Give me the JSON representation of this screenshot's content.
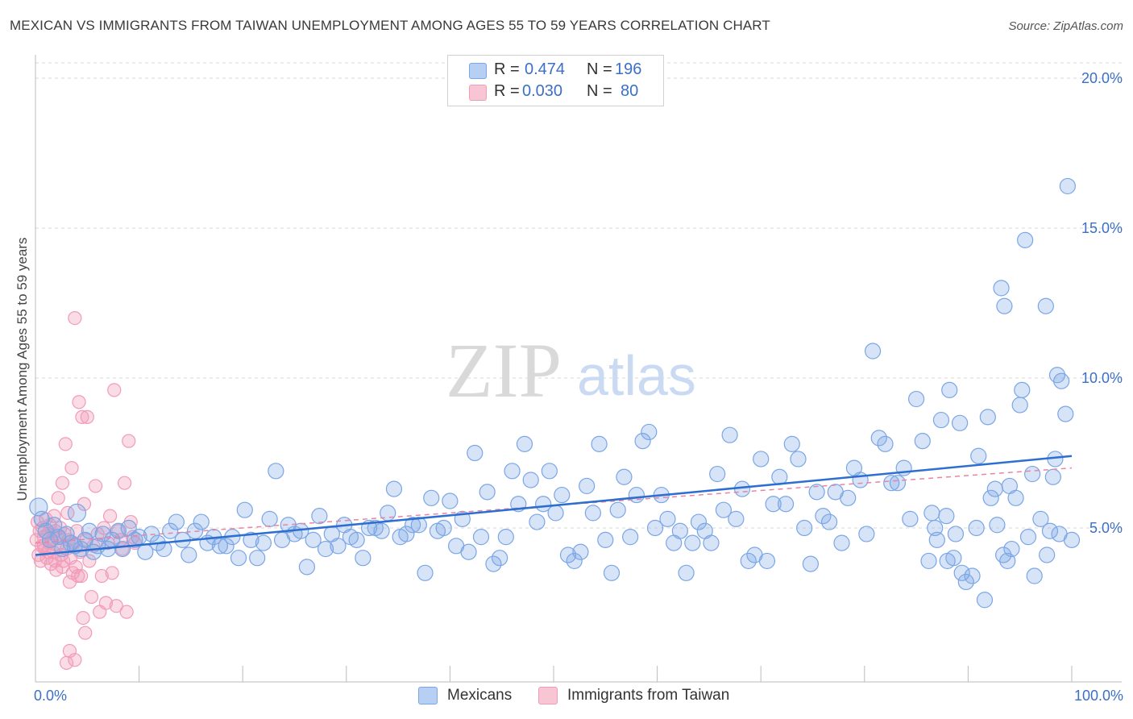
{
  "title": "MEXICAN VS IMMIGRANTS FROM TAIWAN UNEMPLOYMENT AMONG AGES 55 TO 59 YEARS CORRELATION CHART",
  "source": "Source: ZipAtlas.com",
  "watermark": {
    "zip": "ZIP",
    "atlas": "atlas"
  },
  "legend": {
    "rows": [
      {
        "r_label": "R =",
        "r_value": "0.474",
        "n_label": "N =",
        "n_value": "196"
      },
      {
        "r_label": "R =",
        "r_value": "0.030",
        "n_label": "N =",
        "n_value": "80"
      }
    ]
  },
  "bottom_legend": [
    "Mexicans",
    "Immigrants from Taiwan"
  ],
  "x_tick_labels": [
    "0.0%",
    "100.0%"
  ],
  "colors": {
    "blue": "#7aa6e6",
    "blue_line": "#2d6fd0",
    "pink": "#f29bb8",
    "pink_line": "#e884a4",
    "accent_text": "#3b6fc7"
  },
  "chart_data": {
    "type": "scatter",
    "title": "MEXICAN VS IMMIGRANTS FROM TAIWAN UNEMPLOYMENT AMONG AGES 55 TO 59 YEARS CORRELATION CHART",
    "xlabel": "",
    "ylabel": "Unemployment Among Ages 55 to 59 years",
    "xlim": [
      0,
      100
    ],
    "ylim": [
      0,
      20
    ],
    "y_ticks": [
      5,
      10,
      15,
      20
    ],
    "y_tick_labels": [
      "5.0%",
      "10.0%",
      "15.0%",
      "20.0%"
    ],
    "grid": "horizontal dashed",
    "legend_position": "top-center",
    "series": [
      {
        "name": "Mexicans",
        "color": "#7aa6e6",
        "trend": {
          "x": [
            0,
            100
          ],
          "y": [
            4.1,
            7.4
          ]
        },
        "points": [
          [
            0.3,
            5.7
          ],
          [
            0.6,
            5.3
          ],
          [
            1,
            4.9
          ],
          [
            1.4,
            4.6
          ],
          [
            1.8,
            5.1
          ],
          [
            2.2,
            4.7
          ],
          [
            2.6,
            4.3
          ],
          [
            3,
            4.8
          ],
          [
            3.4,
            4.5
          ],
          [
            3.8,
            4.4
          ],
          [
            4,
            5.5
          ],
          [
            4.4,
            4.3
          ],
          [
            4.8,
            4.6
          ],
          [
            5.2,
            4.9
          ],
          [
            5.6,
            4.2
          ],
          [
            6,
            4.4
          ],
          [
            6.5,
            4.8
          ],
          [
            7,
            4.3
          ],
          [
            7.4,
            4.6
          ],
          [
            8,
            4.9
          ],
          [
            8.4,
            4.3
          ],
          [
            9,
            5.0
          ],
          [
            9.6,
            4.6
          ],
          [
            10,
            4.7
          ],
          [
            10.6,
            4.2
          ],
          [
            11.2,
            4.8
          ],
          [
            11.8,
            4.5
          ],
          [
            12.4,
            4.3
          ],
          [
            13,
            4.9
          ],
          [
            13.6,
            5.2
          ],
          [
            14.2,
            4.6
          ],
          [
            14.8,
            4.1
          ],
          [
            15.4,
            4.9
          ],
          [
            16,
            5.2
          ],
          [
            16.6,
            4.5
          ],
          [
            17.2,
            4.7
          ],
          [
            17.8,
            4.4
          ],
          [
            18.4,
            4.4
          ],
          [
            19,
            4.7
          ],
          [
            19.6,
            4.0
          ],
          [
            20.2,
            5.6
          ],
          [
            20.8,
            4.6
          ],
          [
            21.4,
            4.0
          ],
          [
            22,
            4.5
          ],
          [
            22.6,
            5.3
          ],
          [
            23.2,
            6.9
          ],
          [
            23.8,
            4.6
          ],
          [
            24.4,
            5.1
          ],
          [
            25,
            4.8
          ],
          [
            25.6,
            4.9
          ],
          [
            26.2,
            3.7
          ],
          [
            26.8,
            4.6
          ],
          [
            27.4,
            5.4
          ],
          [
            28,
            4.3
          ],
          [
            28.6,
            4.8
          ],
          [
            29.2,
            4.4
          ],
          [
            29.8,
            5.1
          ],
          [
            30.4,
            4.7
          ],
          [
            31,
            4.6
          ],
          [
            31.6,
            4.0
          ],
          [
            32.2,
            5.0
          ],
          [
            32.8,
            5.0
          ],
          [
            33.4,
            4.9
          ],
          [
            34,
            5.5
          ],
          [
            34.6,
            6.3
          ],
          [
            35.2,
            4.7
          ],
          [
            35.8,
            4.8
          ],
          [
            36.4,
            5.1
          ],
          [
            37,
            5.1
          ],
          [
            37.6,
            3.5
          ],
          [
            38.2,
            6.0
          ],
          [
            38.8,
            4.9
          ],
          [
            39.4,
            5.0
          ],
          [
            40,
            5.9
          ],
          [
            40.6,
            4.4
          ],
          [
            41.2,
            5.3
          ],
          [
            41.8,
            4.2
          ],
          [
            42.4,
            7.5
          ],
          [
            43,
            4.7
          ],
          [
            43.6,
            6.2
          ],
          [
            44.2,
            3.8
          ],
          [
            44.8,
            4.0
          ],
          [
            45.4,
            4.7
          ],
          [
            46,
            6.9
          ],
          [
            46.6,
            5.8
          ],
          [
            47.2,
            7.8
          ],
          [
            47.8,
            6.6
          ],
          [
            48.4,
            5.2
          ],
          [
            49,
            5.8
          ],
          [
            49.6,
            6.9
          ],
          [
            50.2,
            5.5
          ],
          [
            50.8,
            6.1
          ],
          [
            51.4,
            4.1
          ],
          [
            52,
            3.9
          ],
          [
            52.6,
            4.2
          ],
          [
            53.2,
            6.4
          ],
          [
            53.8,
            5.5
          ],
          [
            54.4,
            7.8
          ],
          [
            55,
            4.6
          ],
          [
            55.6,
            3.5
          ],
          [
            56.2,
            5.6
          ],
          [
            56.8,
            6.7
          ],
          [
            57.4,
            4.7
          ],
          [
            58,
            6.1
          ],
          [
            58.6,
            7.9
          ],
          [
            59.2,
            8.2
          ],
          [
            59.8,
            5.0
          ],
          [
            60.4,
            6.1
          ],
          [
            61,
            5.3
          ],
          [
            61.6,
            4.5
          ],
          [
            62.2,
            4.9
          ],
          [
            62.8,
            3.5
          ],
          [
            63.4,
            4.5
          ],
          [
            64,
            5.2
          ],
          [
            64.6,
            4.9
          ],
          [
            65.2,
            4.5
          ],
          [
            65.8,
            6.8
          ],
          [
            66.4,
            5.6
          ],
          [
            67,
            8.1
          ],
          [
            67.6,
            5.3
          ],
          [
            68.2,
            6.3
          ],
          [
            68.8,
            3.9
          ],
          [
            69.4,
            4.1
          ],
          [
            70,
            7.3
          ],
          [
            70.6,
            3.9
          ],
          [
            71.2,
            5.8
          ],
          [
            71.8,
            6.7
          ],
          [
            72.4,
            5.8
          ],
          [
            73,
            7.8
          ],
          [
            73.6,
            7.3
          ],
          [
            74.2,
            5.0
          ],
          [
            74.8,
            3.8
          ],
          [
            75.4,
            6.2
          ],
          [
            76,
            5.4
          ],
          [
            76.6,
            5.2
          ],
          [
            77.2,
            6.2
          ],
          [
            77.8,
            4.5
          ],
          [
            78.4,
            6.0
          ],
          [
            79,
            7.0
          ],
          [
            79.6,
            6.6
          ],
          [
            80.2,
            4.8
          ],
          [
            80.8,
            10.9
          ],
          [
            81.4,
            8.0
          ],
          [
            82,
            7.8
          ],
          [
            82.6,
            6.5
          ],
          [
            83.2,
            6.5
          ],
          [
            83.8,
            7.0
          ],
          [
            84.4,
            5.3
          ],
          [
            85,
            9.3
          ],
          [
            85.6,
            7.9
          ],
          [
            86.2,
            3.9
          ],
          [
            86.8,
            5.0
          ],
          [
            87.4,
            8.6
          ],
          [
            88,
            3.9
          ],
          [
            88.6,
            4.0
          ],
          [
            89.2,
            8.5
          ],
          [
            89.8,
            3.2
          ],
          [
            90.4,
            3.4
          ],
          [
            91,
            7.4
          ],
          [
            91.6,
            2.6
          ],
          [
            92.2,
            6.0
          ],
          [
            92.8,
            5.1
          ],
          [
            93.4,
            4.1
          ],
          [
            94,
            6.4
          ],
          [
            94.6,
            6.0
          ],
          [
            95.2,
            9.6
          ],
          [
            95.8,
            4.7
          ],
          [
            96.4,
            3.4
          ],
          [
            97,
            5.3
          ],
          [
            97.6,
            4.1
          ],
          [
            98.2,
            6.7
          ],
          [
            98.8,
            4.8
          ],
          [
            99.4,
            8.8
          ],
          [
            100,
            4.6
          ],
          [
            88.2,
            9.6
          ],
          [
            93.2,
            13.0
          ],
          [
            93.5,
            12.4
          ],
          [
            95.5,
            14.6
          ],
          [
            97.5,
            12.4
          ],
          [
            98.6,
            10.1
          ],
          [
            99.0,
            9.9
          ],
          [
            99.6,
            16.4
          ],
          [
            98.4,
            7.3
          ],
          [
            97.9,
            4.9
          ],
          [
            96.2,
            6.8
          ],
          [
            95.0,
            9.1
          ],
          [
            94.2,
            4.3
          ],
          [
            93.8,
            3.9
          ],
          [
            92.6,
            6.3
          ],
          [
            91.9,
            8.7
          ],
          [
            90.8,
            5.0
          ],
          [
            89.4,
            3.5
          ],
          [
            88.8,
            4.8
          ],
          [
            87.9,
            5.4
          ],
          [
            87.0,
            4.6
          ],
          [
            86.5,
            5.5
          ]
        ]
      },
      {
        "name": "Immigrants from Taiwan",
        "color": "#f29bb8",
        "trend": {
          "x": [
            0,
            100
          ],
          "y": [
            4.5,
            7.0
          ]
        },
        "points": [
          [
            0.1,
            4.6
          ],
          [
            0.2,
            5.2
          ],
          [
            0.3,
            4.1
          ],
          [
            0.4,
            4.9
          ],
          [
            0.5,
            3.9
          ],
          [
            0.6,
            4.4
          ],
          [
            0.7,
            5.0
          ],
          [
            0.8,
            4.7
          ],
          [
            0.9,
            4.3
          ],
          [
            1.0,
            5.3
          ],
          [
            1.1,
            4.0
          ],
          [
            1.2,
            4.8
          ],
          [
            1.3,
            4.5
          ],
          [
            1.4,
            5.1
          ],
          [
            1.5,
            3.8
          ],
          [
            1.6,
            4.6
          ],
          [
            1.7,
            4.2
          ],
          [
            1.8,
            5.4
          ],
          [
            1.9,
            4.9
          ],
          [
            2.0,
            3.6
          ],
          [
            2.1,
            4.4
          ],
          [
            2.2,
            6.0
          ],
          [
            2.3,
            4.7
          ],
          [
            2.4,
            5.0
          ],
          [
            2.5,
            4.1
          ],
          [
            2.6,
            6.5
          ],
          [
            2.7,
            3.9
          ],
          [
            2.8,
            4.8
          ],
          [
            2.9,
            7.8
          ],
          [
            3.0,
            4.3
          ],
          [
            3.1,
            5.5
          ],
          [
            3.2,
            4.6
          ],
          [
            3.3,
            3.2
          ],
          [
            3.4,
            4.0
          ],
          [
            3.5,
            7.0
          ],
          [
            3.6,
            3.5
          ],
          [
            3.7,
            4.5
          ],
          [
            3.8,
            12.0
          ],
          [
            3.9,
            3.7
          ],
          [
            4.0,
            4.9
          ],
          [
            4.1,
            3.4
          ],
          [
            4.2,
            9.2
          ],
          [
            4.3,
            4.2
          ],
          [
            4.4,
            3.4
          ],
          [
            4.5,
            8.7
          ],
          [
            4.6,
            2.0
          ],
          [
            4.7,
            5.8
          ],
          [
            4.8,
            1.5
          ],
          [
            4.9,
            4.6
          ],
          [
            5.0,
            8.7
          ],
          [
            5.2,
            3.9
          ],
          [
            5.4,
            2.7
          ],
          [
            5.6,
            4.4
          ],
          [
            5.8,
            6.4
          ],
          [
            6.0,
            4.8
          ],
          [
            6.2,
            2.2
          ],
          [
            6.4,
            3.4
          ],
          [
            6.6,
            5.0
          ],
          [
            6.8,
            2.5
          ],
          [
            7.0,
            4.5
          ],
          [
            7.2,
            5.4
          ],
          [
            7.4,
            3.5
          ],
          [
            7.6,
            9.6
          ],
          [
            7.8,
            2.4
          ],
          [
            8.0,
            4.9
          ],
          [
            8.2,
            4.6
          ],
          [
            8.4,
            4.3
          ],
          [
            8.6,
            6.5
          ],
          [
            8.8,
            2.2
          ],
          [
            9.0,
            7.9
          ],
          [
            9.2,
            5.2
          ],
          [
            9.4,
            4.7
          ],
          [
            9.6,
            4.5
          ],
          [
            3.0,
            0.5
          ],
          [
            3.3,
            0.9
          ],
          [
            3.8,
            0.6
          ],
          [
            2.6,
            3.7
          ],
          [
            1.9,
            3.9
          ],
          [
            1.2,
            4.2
          ],
          [
            0.8,
            4.4
          ]
        ]
      }
    ]
  }
}
